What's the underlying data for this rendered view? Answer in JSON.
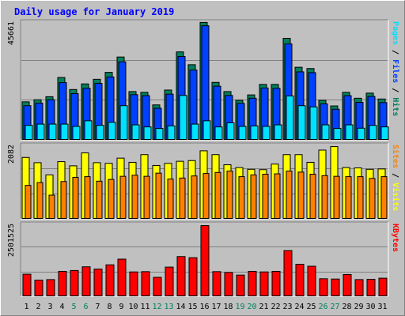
{
  "title": "Daily usage for January 2019",
  "colors": {
    "background": "#c0c0c0",
    "title": "#0000ff",
    "hits": "#00805c",
    "files": "#0040ff",
    "pages": "#00e0ff",
    "visits": "#ffff00",
    "sites": "#ff8000",
    "kbytes": "#ff0000",
    "weekend_label": "#00805c",
    "weekday_label": "#000000"
  },
  "chart_data": [
    {
      "type": "bar",
      "panel": "hits-files-pages",
      "ymax_label": "45661",
      "ylim": [
        0,
        45661
      ],
      "legend": {
        "pages": "Pages",
        "sep1": " / ",
        "files": "Files",
        "sep2": " / ",
        "hits": "Hits"
      },
      "categories": [
        "1",
        "2",
        "3",
        "4",
        "5",
        "6",
        "7",
        "8",
        "9",
        "10",
        "11",
        "12",
        "13",
        "14",
        "15",
        "16",
        "17",
        "18",
        "19",
        "20",
        "21",
        "22",
        "23",
        "24",
        "25",
        "26",
        "27",
        "28",
        "29",
        "30",
        "31"
      ],
      "series": [
        {
          "name": "Hits",
          "values": [
            15000,
            15800,
            17000,
            24500,
            19800,
            22000,
            23800,
            26500,
            32500,
            19000,
            18700,
            13800,
            19600,
            34500,
            29500,
            46000,
            22600,
            19000,
            15600,
            17700,
            21800,
            21800,
            39800,
            28500,
            28000,
            15600,
            13400,
            18700,
            16400,
            18400,
            16100
          ]
        },
        {
          "name": "Files",
          "values": [
            13500,
            14500,
            15800,
            22500,
            18200,
            20300,
            22200,
            24700,
            30600,
            17800,
            17400,
            12500,
            18000,
            32700,
            27400,
            44700,
            21100,
            17500,
            14400,
            16400,
            20400,
            20300,
            37600,
            26700,
            26400,
            14200,
            12100,
            17400,
            14800,
            17100,
            14700
          ]
        },
        {
          "name": "Pages",
          "values": [
            5800,
            6300,
            6300,
            6300,
            5400,
            7600,
            5800,
            7000,
            13500,
            6000,
            5200,
            4600,
            5600,
            17500,
            6300,
            7600,
            5200,
            6800,
            5400,
            5600,
            5400,
            6000,
            17300,
            13500,
            13000,
            6000,
            4600,
            6000,
            4700,
            5800,
            5200
          ]
        }
      ],
      "weekend_days": [
        "5",
        "6",
        "12",
        "13",
        "19",
        "20",
        "26",
        "27"
      ]
    },
    {
      "type": "bar",
      "panel": "visits-sites",
      "ymax_label": "2082",
      "ylim": [
        0,
        2082
      ],
      "legend": {
        "sites": "Sites",
        "sep": " / ",
        "visits": "Visits"
      },
      "series": [
        {
          "name": "Visits",
          "values": [
            1770,
            1620,
            1270,
            1650,
            1530,
            1900,
            1620,
            1600,
            1750,
            1630,
            1850,
            1540,
            1600,
            1660,
            1680,
            1960,
            1850,
            1560,
            1480,
            1430,
            1420,
            1580,
            1850,
            1850,
            1630,
            1980,
            2080,
            1480,
            1470,
            1430,
            1440
          ]
        },
        {
          "name": "Sites",
          "values": [
            970,
            1050,
            690,
            1080,
            1200,
            1220,
            1090,
            1140,
            1230,
            1260,
            1230,
            1320,
            1150,
            1180,
            1240,
            1310,
            1340,
            1380,
            1220,
            1270,
            1290,
            1300,
            1380,
            1350,
            1290,
            1250,
            1230,
            1220,
            1220,
            1170,
            1220
          ]
        }
      ]
    },
    {
      "type": "bar",
      "panel": "kbytes",
      "ymax_label": "2501525",
      "ylim": [
        0,
        2501525
      ],
      "legend": {
        "kbytes": "KBytes"
      },
      "series": [
        {
          "name": "KBytes",
          "values": [
            790000,
            580000,
            600000,
            890000,
            920000,
            1050000,
            970000,
            1120000,
            1320000,
            870000,
            880000,
            680000,
            1040000,
            1410000,
            1370000,
            2500000,
            880000,
            850000,
            760000,
            890000,
            870000,
            890000,
            1620000,
            1140000,
            1070000,
            630000,
            620000,
            780000,
            600000,
            610000,
            650000
          ]
        }
      ]
    }
  ]
}
